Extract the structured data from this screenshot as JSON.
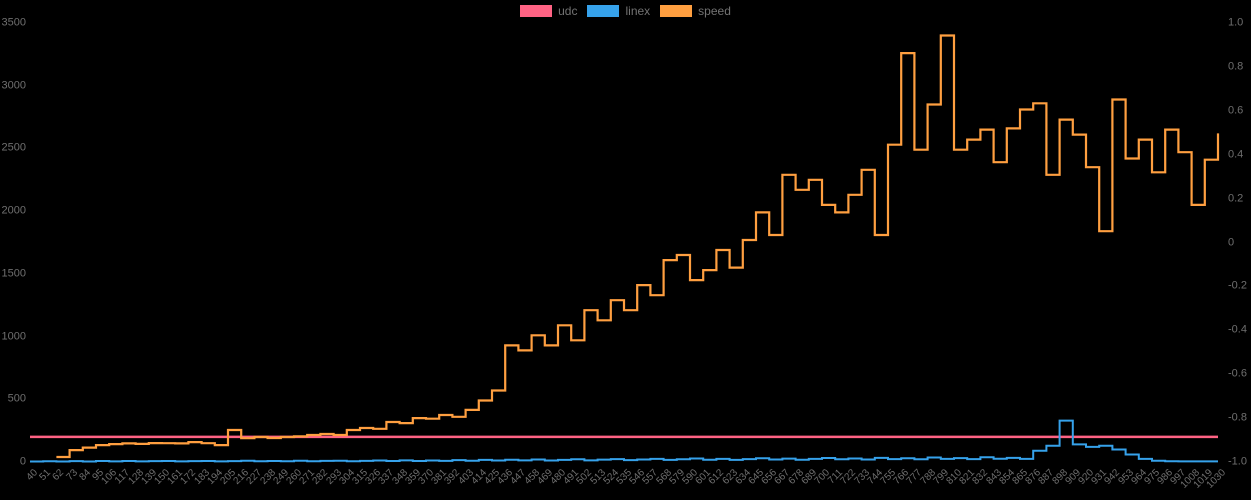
{
  "legend": {
    "items": [
      {
        "label": "udc",
        "color": "#ff6384"
      },
      {
        "label": "linex",
        "color": "#36a2eb"
      },
      {
        "label": "speed",
        "color": "#ff9f40"
      }
    ]
  },
  "chart_data": {
    "type": "line",
    "title": "",
    "background": "#000000",
    "grid": false,
    "legend_position": "top-center",
    "text_color": "#6f6f6f",
    "categories": [
      40,
      51,
      62,
      73,
      84,
      95,
      106,
      117,
      128,
      139,
      150,
      161,
      172,
      183,
      194,
      205,
      216,
      227,
      238,
      249,
      260,
      271,
      282,
      293,
      304,
      315,
      326,
      337,
      348,
      359,
      370,
      381,
      392,
      403,
      414,
      425,
      436,
      447,
      458,
      469,
      480,
      491,
      502,
      513,
      524,
      535,
      546,
      557,
      568,
      579,
      590,
      601,
      612,
      623,
      634,
      645,
      656,
      667,
      678,
      689,
      700,
      711,
      722,
      733,
      744,
      755,
      766,
      777,
      788,
      799,
      810,
      821,
      832,
      843,
      854,
      865,
      876,
      887,
      898,
      909,
      920,
      931,
      942,
      953,
      964,
      975,
      986,
      997,
      1008,
      1019,
      1030
    ],
    "series": [
      {
        "name": "udc",
        "color": "#ff6384",
        "yaxis": "left",
        "line_width": 2.5,
        "constant_value": 200
      },
      {
        "name": "linex",
        "color": "#36a2eb",
        "yaxis": "left",
        "line_width": 2,
        "values": [
          4,
          6,
          4,
          7,
          4,
          8,
          5,
          8,
          5,
          7,
          8,
          5,
          7,
          8,
          5,
          7,
          10,
          6,
          8,
          6,
          10,
          6,
          9,
          10,
          6,
          9,
          12,
          8,
          13,
          8,
          12,
          9,
          15,
          10,
          17,
          12,
          18,
          13,
          20,
          12,
          17,
          22,
          13,
          19,
          23,
          15,
          20,
          25,
          17,
          22,
          28,
          18,
          25,
          17,
          23,
          30,
          20,
          27,
          18,
          25,
          32,
          22,
          28,
          20,
          33,
          23,
          30,
          22,
          36,
          25,
          31,
          23,
          38,
          26,
          33,
          25,
          90,
          130,
          330,
          140,
          120,
          130,
          100,
          60,
          25,
          10,
          6,
          5,
          5,
          5,
          5
        ]
      },
      {
        "name": "speed",
        "color": "#ff9f40",
        "yaxis": "left",
        "line_width": 2.2,
        "values": [
          null,
          null,
          40,
          95,
          115,
          135,
          143,
          148,
          144,
          151,
          150,
          148,
          159,
          150,
          135,
          255,
          190,
          199,
          191,
          199,
          205,
          215,
          223,
          215,
          255,
          271,
          265,
          319,
          310,
          350,
          345,
          375,
          360,
          415,
          490,
          570,
          930,
          890,
          1010,
          930,
          1090,
          970,
          1210,
          1130,
          1290,
          1210,
          1410,
          1330,
          1610,
          1650,
          1450,
          1530,
          1690,
          1550,
          1770,
          1990,
          1810,
          2290,
          2170,
          2250,
          2050,
          1990,
          2130,
          2330,
          1810,
          2530,
          3260,
          2490,
          2850,
          3400,
          2490,
          2570,
          2650,
          2390,
          2660,
          2810,
          2860,
          2290,
          2730,
          2610,
          2350,
          1840,
          2890,
          2420,
          2570,
          2310,
          2650,
          2470,
          2050,
          2410,
          2620
        ]
      }
    ],
    "ylim_left": [
      0,
      3500
    ],
    "ylim_right": [
      -1.0,
      1.0
    ],
    "y_ticks_left": [
      "3500",
      "3000",
      "2500",
      "2000",
      "1500",
      "1000",
      "500",
      "0"
    ],
    "y_ticks_right": [
      "1.0",
      "0.8",
      "0.6",
      "0.4",
      "0.2",
      "0",
      "-0.2",
      "-0.4",
      "-0.6",
      "-0.8",
      "-1.0"
    ]
  }
}
